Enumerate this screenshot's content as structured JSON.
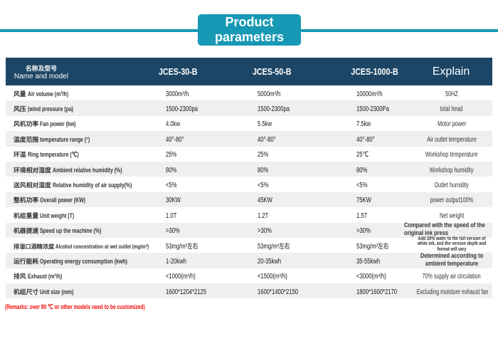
{
  "title": {
    "line1": "Product",
    "line2": "parameters"
  },
  "colors": {
    "accent_teal": "#1798b5",
    "header_navy": "#1d4666",
    "row_alt_gray": "#efefef",
    "remark_red": "#f20d0d"
  },
  "table": {
    "header": {
      "name_cjk": "名称及型号",
      "name_en": "Name and model",
      "model1": "JCES-30-B",
      "model2": "JCES-50-B",
      "model3": "JCES-1000-B",
      "explain": "Explain"
    },
    "rows": [
      {
        "cn": "风量",
        "en": "Air volume (m³/h)",
        "v1": "3000m³/h",
        "v2": "5000m³/h",
        "v3": "10000m³/h",
        "ex": "50HZ"
      },
      {
        "cn": "风压",
        "en": "(wind pressure (pa)",
        "v1": "1500-2300pa",
        "v2": "1500-2300pa",
        "v3": "1500-2300Pa",
        "ex": "total head"
      },
      {
        "cn": "风机功率",
        "en": "Fan power (kw)",
        "v1": "4.0kw",
        "v2": "5.5kw",
        "v3": "7.5kw",
        "ex": "Motor power"
      },
      {
        "cn": "温度范围",
        "en": "temperature range (°)",
        "v1": "40°-80°",
        "v2": "40°-80°",
        "v3": "40°-80°",
        "ex": "Air outlet temperature"
      },
      {
        "cn": "环温",
        "en": "Ring temperature (℃)",
        "v1": "25%",
        "v2": "25%",
        "v3": "25℃",
        "ex": "Workshop temperature"
      },
      {
        "cn": "环境相对湿度",
        "en": "Ambient relative humidity (%)",
        "v1": "80%",
        "v2": "80%",
        "v3": "80%",
        "ex": "Workshop humidity"
      },
      {
        "cn": "送风相对湿度",
        "en": "Relative humidity of air supply(%)",
        "v1": "<5%",
        "v2": "<5%",
        "v3": "<5%",
        "ex": "Outlet humidity"
      },
      {
        "cn": "整机功率",
        "en": "Overall power (KW)",
        "v1": "30KW",
        "v2": "45KW",
        "v3": "75KW",
        "ex": "power output100%"
      },
      {
        "cn": "机组重量",
        "en": "Unit weight (T)",
        "v1": "1.0T",
        "v2": "1.2T",
        "v3": "1.5T",
        "ex": "Net weight"
      },
      {
        "cn": "机器提速",
        "en": "Speed up the machine (%)",
        "v1": ">30%",
        "v2": ">30%",
        "v3": ">30%",
        "ex": "Compared with the speed of the original ink press"
      },
      {
        "cn": "排湿口酒精浓度",
        "en": "Alcohol concentration at wet outlet (mg/m³)",
        "v1": "53mg/m³左右",
        "v2": "53mg/m³左右",
        "v3": "53mg/m³左右",
        "ex": "Add 20% water to the full version of white ink, and the version depth and format will vary"
      },
      {
        "cn": "运行能耗",
        "en": "Operating energy consumption (kwh)",
        "v1": "1-20kwh",
        "v2": "20-35kwh",
        "v3": "35-55kwh",
        "ex": "Determined according to ambient temperature"
      },
      {
        "cn": "排风",
        "en": "Exhaust (m³/h)",
        "v1": "<1000(m³/h)",
        "v2": "<1500(m³/h)",
        "v3": "<3000(m³/h)",
        "ex": "70% supply air circulation"
      },
      {
        "cn": "机组尺寸",
        "en": "Unit size (mm)",
        "v1": "1600*1204*2125",
        "v2": "1600*1400*2150",
        "v3": "1800*1600*2170",
        "ex": "Excluding moisture exhaust fan"
      }
    ]
  },
  "remark": "(Remarks: over 80 ℃ or other models need to be customized)"
}
